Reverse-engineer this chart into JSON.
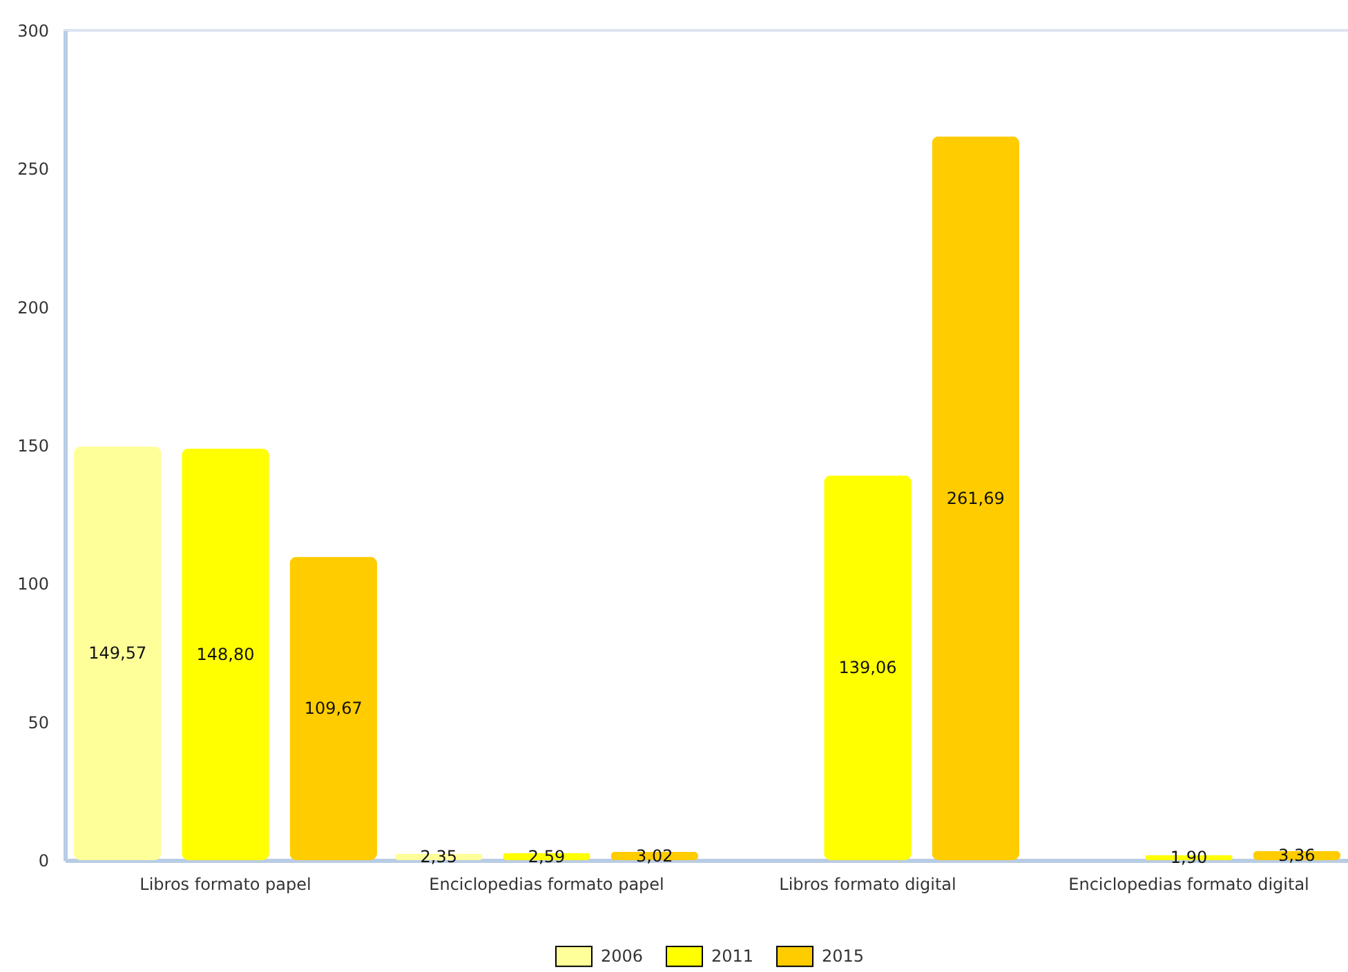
{
  "chart_data": {
    "type": "bar",
    "categories": [
      "Libros formato papel",
      "Enciclopedias formato papel",
      "Libros formato digital",
      "Enciclopedias formato digital"
    ],
    "series": [
      {
        "name": "2006",
        "color": "#ffff99",
        "values": [
          149.57,
          2.35,
          null,
          null
        ],
        "value_labels": [
          "149,57",
          "2,35",
          null,
          null
        ]
      },
      {
        "name": "2011",
        "color": "#ffff00",
        "values": [
          148.8,
          2.59,
          139.06,
          1.9
        ],
        "value_labels": [
          "148,80",
          "2,59",
          "139,06",
          "1,90"
        ]
      },
      {
        "name": "2015",
        "color": "#ffcc00",
        "values": [
          109.67,
          3.02,
          261.69,
          3.36
        ],
        "value_labels": [
          "109,67",
          "3,02",
          "261,69",
          "3,36"
        ]
      }
    ],
    "ylim": [
      0,
      300
    ],
    "yticks": [
      0,
      50,
      100,
      150,
      200,
      250,
      300
    ],
    "legend": "bottom"
  }
}
